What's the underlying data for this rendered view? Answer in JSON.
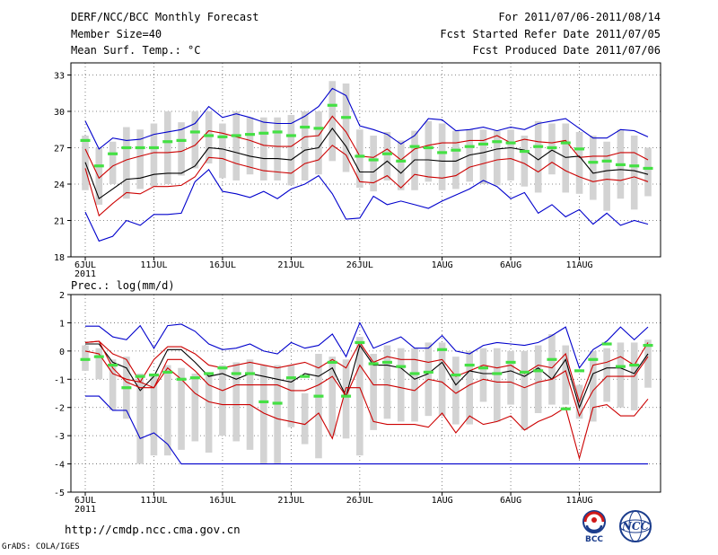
{
  "header": {
    "title": "DERF/NCC/BCC Monthly Forecast",
    "member_size": "Member Size=40",
    "variable_top": "Mean Surf. Temp.: °C",
    "forecast_period": "For 2011/07/06-2011/08/14",
    "fcst_started": "Fcst Started Refer Date 2011/07/05",
    "fcst_produced": "Fcst Produced Date 2011/07/06"
  },
  "footer": {
    "url": "http://cmdp.ncc.cma.gov.cn",
    "credit": "GrADS: COLA/IGES",
    "logo_bcc": "BCC",
    "logo_ncc": "NCC"
  },
  "colors": {
    "box": "#d3d3d3",
    "member_mark": "#44e044",
    "envelope": "#0000cc",
    "spread": "#cc0000",
    "mean": "#000000",
    "grid": "#666666"
  },
  "chart_data": [
    {
      "type": "line",
      "title": "Mean Surf. Temp.: °C",
      "ylabel": "°C",
      "ylim": [
        18,
        34
      ],
      "yticks": [
        18,
        21,
        24,
        27,
        30,
        33
      ],
      "xtick_labels": [
        "6JUL",
        "11JUL",
        "16JUL",
        "21JUL",
        "26JUL",
        "1AUG",
        "6AUG",
        "11AUG"
      ],
      "xtick_days": [
        0,
        5,
        10,
        15,
        20,
        26,
        31,
        36
      ],
      "year_label": "2011",
      "series": [
        {
          "name": "max",
          "values": [
            29.2,
            26.9,
            27.8,
            27.6,
            27.7,
            28.1,
            28.3,
            28.5,
            29.0,
            30.4,
            29.5,
            29.8,
            29.5,
            29.1,
            29.0,
            29.0,
            29.6,
            30.4,
            31.9,
            31.3,
            28.8,
            28.5,
            28.1,
            27.3,
            28.0,
            29.4,
            29.3,
            28.4,
            28.5,
            28.7,
            28.4,
            28.7,
            28.5,
            29.0,
            29.2,
            29.4,
            28.6,
            27.8,
            27.8,
            28.5,
            28.4,
            27.9
          ]
        },
        {
          "name": "upper",
          "values": [
            26.9,
            24.5,
            25.5,
            26.0,
            26.3,
            26.6,
            26.6,
            26.7,
            27.2,
            28.4,
            28.2,
            27.9,
            27.6,
            27.2,
            27.1,
            27.1,
            27.9,
            28.0,
            29.6,
            28.3,
            26.3,
            26.2,
            26.9,
            26.0,
            26.9,
            27.2,
            27.4,
            27.4,
            27.6,
            27.6,
            28.0,
            27.4,
            27.7,
            27.5,
            27.4,
            27.6,
            26.2,
            26.3,
            26.3,
            26.6,
            26.6,
            26.0
          ]
        },
        {
          "name": "mean",
          "values": [
            25.8,
            22.8,
            23.6,
            24.4,
            24.5,
            24.8,
            24.9,
            24.9,
            25.5,
            27.0,
            26.9,
            26.6,
            26.3,
            26.1,
            26.1,
            26.0,
            26.8,
            27.0,
            28.6,
            27.1,
            25.0,
            25.0,
            25.9,
            24.9,
            26.0,
            26.0,
            25.9,
            25.9,
            26.4,
            26.6,
            26.9,
            27.0,
            26.8,
            26.0,
            26.8,
            26.2,
            26.3,
            24.9,
            25.1,
            25.2,
            25.1,
            24.8
          ]
        },
        {
          "name": "lower",
          "values": [
            25.3,
            21.4,
            22.4,
            23.3,
            23.2,
            23.8,
            23.8,
            23.9,
            24.6,
            26.2,
            26.1,
            25.7,
            25.4,
            25.1,
            25.0,
            24.9,
            25.7,
            26.0,
            27.2,
            26.4,
            24.2,
            24.1,
            24.7,
            23.7,
            24.8,
            24.6,
            24.5,
            24.7,
            25.4,
            25.7,
            26.0,
            26.1,
            25.7,
            25.0,
            25.8,
            25.1,
            24.6,
            24.2,
            24.4,
            24.3,
            24.6,
            24.2
          ]
        },
        {
          "name": "min",
          "values": [
            21.7,
            19.3,
            19.7,
            21.0,
            20.6,
            21.5,
            21.5,
            21.6,
            24.2,
            25.2,
            23.4,
            23.2,
            22.9,
            23.4,
            22.8,
            23.6,
            24.0,
            24.7,
            23.2,
            21.1,
            21.2,
            23.0,
            22.3,
            22.6,
            22.3,
            22.0,
            22.6,
            23.1,
            23.6,
            24.3,
            23.8,
            22.8,
            23.3,
            21.6,
            22.3,
            21.3,
            21.9,
            20.7,
            21.6,
            20.6,
            21.0,
            20.7
          ]
        }
      ],
      "boxes": {
        "top": [
          28.0,
          27.0,
          27.5,
          28.7,
          28.5,
          29.0,
          30.0,
          29.1,
          30.0,
          30.0,
          29.0,
          30.0,
          29.5,
          29.5,
          29.5,
          29.7,
          30.0,
          30.0,
          32.5,
          32.3,
          28.5,
          28.0,
          28.3,
          27.6,
          28.4,
          29.2,
          29.0,
          28.4,
          28.5,
          28.5,
          28.4,
          28.5,
          28.0,
          29.2,
          29.0,
          29.0,
          28.3,
          28.0,
          27.5,
          28.5,
          28.0,
          27.0
        ],
        "bottom": [
          23.5,
          22.3,
          24.0,
          22.8,
          23.6,
          23.8,
          24.0,
          24.7,
          25.3,
          25.7,
          24.5,
          24.3,
          24.8,
          24.3,
          24.3,
          23.9,
          24.3,
          24.8,
          25.9,
          25.0,
          23.7,
          23.4,
          24.3,
          23.5,
          23.5,
          24.2,
          23.5,
          23.6,
          24.2,
          24.0,
          23.9,
          24.3,
          23.8,
          23.3,
          24.8,
          23.3,
          23.2,
          22.7,
          21.8,
          22.8,
          21.9,
          23.0
        ]
      },
      "marks": [
        27.6,
        25.5,
        26.5,
        27.0,
        27.0,
        27.0,
        27.5,
        27.6,
        28.3,
        28.0,
        27.9,
        28.0,
        28.1,
        28.2,
        28.3,
        28.0,
        28.7,
        28.6,
        30.5,
        29.5,
        26.3,
        26.0,
        26.5,
        25.9,
        27.1,
        27.0,
        26.6,
        26.8,
        27.1,
        27.3,
        27.5,
        27.4,
        26.7,
        27.1,
        27.0,
        27.4,
        26.9,
        25.8,
        25.9,
        25.6,
        25.5,
        25.3
      ]
    },
    {
      "type": "line",
      "title": "Prec.: log(mm/d)",
      "ylabel": "log(mm/d)",
      "ylim": [
        -5,
        2
      ],
      "yticks": [
        -5,
        -4,
        -3,
        -2,
        -1,
        0,
        1,
        2
      ],
      "xtick_labels": [
        "6JUL",
        "11JUL",
        "16JUL",
        "21JUL",
        "26JUL",
        "1AUG",
        "6AUG",
        "11AUG"
      ],
      "xtick_days": [
        0,
        5,
        10,
        15,
        20,
        26,
        31,
        36
      ],
      "year_label": "2011",
      "series": [
        {
          "name": "max",
          "values": [
            0.88,
            0.88,
            0.5,
            0.4,
            0.9,
            0.1,
            0.9,
            0.95,
            0.7,
            0.25,
            0.05,
            0.1,
            0.25,
            0.0,
            -0.1,
            0.3,
            0.1,
            0.2,
            0.6,
            -0.2,
            1.0,
            0.1,
            0.3,
            0.5,
            0.1,
            0.1,
            0.55,
            0.0,
            -0.1,
            0.2,
            0.3,
            0.25,
            0.2,
            0.3,
            0.55,
            0.85,
            -0.6,
            0.05,
            0.35,
            0.85,
            0.4,
            0.85
          ]
        },
        {
          "name": "upper",
          "values": [
            0.3,
            0.35,
            -0.1,
            -0.3,
            -1.1,
            -0.3,
            0.15,
            0.15,
            -0.1,
            -0.5,
            -0.6,
            -0.5,
            -0.4,
            -0.5,
            -0.6,
            -0.5,
            -0.4,
            -0.6,
            -0.3,
            -0.6,
            0.3,
            -0.4,
            -0.2,
            -0.3,
            -0.3,
            -0.4,
            -0.3,
            -0.9,
            -0.7,
            -0.5,
            -0.6,
            -0.5,
            -0.8,
            -0.5,
            -0.6,
            -0.1,
            -1.8,
            -0.5,
            -0.4,
            -0.2,
            -0.5,
            0.3
          ]
        },
        {
          "name": "mean",
          "values": [
            0.25,
            0.25,
            -0.4,
            -0.6,
            -1.4,
            -0.9,
            0.05,
            0.05,
            -0.4,
            -0.9,
            -0.8,
            -1.0,
            -0.8,
            -0.9,
            -1.0,
            -1.1,
            -0.8,
            -0.9,
            -0.6,
            -1.6,
            0.2,
            -0.5,
            -0.5,
            -0.6,
            -1.0,
            -0.8,
            -0.4,
            -1.2,
            -0.7,
            -0.8,
            -0.8,
            -0.7,
            -0.9,
            -0.6,
            -1.0,
            -0.3,
            -2.0,
            -0.8,
            -0.6,
            -0.6,
            -0.8,
            -0.1
          ]
        },
        {
          "name": "lower",
          "values": [
            0.3,
            0.35,
            -0.6,
            -1.1,
            -1.3,
            -1.3,
            -0.3,
            -0.3,
            -0.7,
            -1.2,
            -1.4,
            -1.2,
            -1.2,
            -1.2,
            -1.2,
            -1.4,
            -1.4,
            -1.2,
            -0.9,
            -1.6,
            -0.5,
            -1.2,
            -1.2,
            -1.3,
            -1.4,
            -1.0,
            -1.1,
            -1.5,
            -1.2,
            -1.0,
            -1.1,
            -1.1,
            -1.3,
            -1.1,
            -1.0,
            -0.7,
            -2.3,
            -1.4,
            -0.9,
            -0.9,
            -0.9,
            -0.2
          ]
        },
        {
          "name": "min",
          "values": [
            -1.6,
            -1.6,
            -2.1,
            -2.1,
            -3.1,
            -2.9,
            -3.3,
            -4.0,
            -4.0,
            -4.0,
            -4.0,
            -4.0,
            -4.0,
            -4.0,
            -4.0,
            -4.0,
            -4.0,
            -4.0,
            -4.0,
            -4.0,
            -4.0,
            -4.0,
            -4.0,
            -4.0,
            -4.0,
            -4.0,
            -4.0,
            -4.0,
            -4.0,
            -4.0,
            -4.0,
            -4.0,
            -4.0,
            -4.0,
            -4.0,
            -4.0,
            -4.0,
            -4.0,
            -4.0,
            -4.0,
            -4.0,
            -4.0
          ]
        },
        {
          "name": "extreme_low",
          "values": [
            0.0,
            -0.1,
            -0.8,
            -1.0,
            -1.1,
            -1.3,
            -0.6,
            -1.0,
            -1.5,
            -1.8,
            -1.9,
            -1.9,
            -1.9,
            -2.2,
            -2.4,
            -2.5,
            -2.6,
            -2.2,
            -3.1,
            -1.3,
            -1.3,
            -2.5,
            -2.6,
            -2.6,
            -2.6,
            -2.7,
            -2.2,
            -2.9,
            -2.3,
            -2.6,
            -2.5,
            -2.3,
            -2.8,
            -2.5,
            -2.3,
            -2.0,
            -3.8,
            -2.0,
            -1.9,
            -2.3,
            -2.3,
            -1.7
          ]
        }
      ],
      "boxes": {
        "top": [
          0.2,
          0.1,
          -0.3,
          -0.2,
          -0.8,
          -0.8,
          -0.5,
          -0.6,
          -0.8,
          -0.8,
          -0.5,
          -0.4,
          -0.3,
          -0.5,
          -0.5,
          -0.5,
          -1.5,
          -0.1,
          -0.2,
          -0.3,
          0.5,
          -0.1,
          0.2,
          0.1,
          0.1,
          0.3,
          0.3,
          -0.2,
          0.0,
          0.1,
          0.1,
          0.0,
          0.0,
          0.2,
          0.6,
          0.2,
          -1.2,
          0.0,
          0.1,
          0.3,
          0.3,
          0.4
        ],
        "bottom": [
          -0.7,
          -1.0,
          -2.1,
          -2.4,
          -4.0,
          -3.7,
          -3.7,
          -3.5,
          -3.2,
          -3.6,
          -3.0,
          -3.2,
          -3.5,
          -4.0,
          -4.0,
          -2.7,
          -3.3,
          -3.8,
          -3.0,
          -3.1,
          -3.7,
          -2.8,
          -2.4,
          -2.5,
          -2.5,
          -2.3,
          -2.3,
          -2.6,
          -2.6,
          -1.8,
          -2.5,
          -1.9,
          -2.8,
          -2.2,
          -1.9,
          -1.9,
          -2.4,
          -2.5,
          -1.8,
          -2.0,
          -2.1,
          -1.3
        ]
      },
      "marks": [
        -0.3,
        -0.2,
        -0.5,
        -1.3,
        -0.9,
        -0.85,
        -0.75,
        -1.0,
        -0.95,
        -0.8,
        -0.6,
        -0.8,
        -0.8,
        -1.8,
        -1.85,
        -0.95,
        -0.9,
        -1.6,
        -0.4,
        -1.6,
        0.3,
        -0.45,
        -0.4,
        -0.55,
        -0.8,
        -0.75,
        0.05,
        -0.85,
        -0.5,
        -0.6,
        -0.8,
        -0.4,
        -0.75,
        -0.7,
        -0.3,
        -2.05,
        -0.7,
        -0.3,
        0.25,
        -0.55,
        -0.5,
        0.2
      ]
    }
  ]
}
